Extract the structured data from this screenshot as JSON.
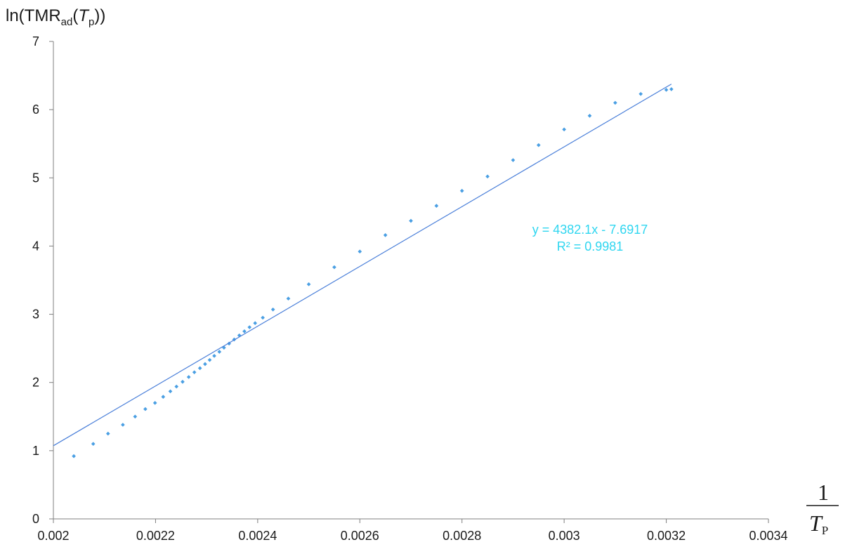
{
  "chart_data": {
    "type": "scatter",
    "ylabel": {
      "prefix": "ln(TMR",
      "sub": "ad",
      "paren": "(",
      "var": "T",
      "var_sub": "p",
      "suffix": "))"
    },
    "xlabel": {
      "numerator": "1",
      "var": "T",
      "var_sub": "P"
    },
    "xlim": [
      0.002,
      0.0034
    ],
    "ylim": [
      0,
      7
    ],
    "x_ticks": [
      0.002,
      0.0022,
      0.0024,
      0.0026,
      0.0028,
      0.003,
      0.0032,
      0.0034
    ],
    "x_tick_labels": [
      "0.002",
      "0.0022",
      "0.0024",
      "0.0026",
      "0.0028",
      "0.003",
      "0.0032",
      "0.0034"
    ],
    "y_ticks": [
      0,
      1,
      2,
      3,
      4,
      5,
      6,
      7
    ],
    "y_tick_labels": [
      "0",
      "1",
      "2",
      "3",
      "4",
      "5",
      "6",
      "7"
    ],
    "grid": false,
    "series": [
      {
        "marker_color": "#4a9fe3",
        "x": [
          0.00204,
          0.002078,
          0.002107,
          0.002136,
          0.00216,
          0.00218,
          0.002199,
          0.002215,
          0.002229,
          0.002241,
          0.002253,
          0.002265,
          0.002276,
          0.002287,
          0.002297,
          0.002306,
          0.002315,
          0.002325,
          0.002334,
          0.002344,
          0.002354,
          0.002364,
          0.002374,
          0.002384,
          0.002395,
          0.00241,
          0.00243,
          0.00246,
          0.0025,
          0.00255,
          0.0026,
          0.00265,
          0.0027,
          0.00275,
          0.0028,
          0.00285,
          0.0029,
          0.00295,
          0.003,
          0.00305,
          0.0031,
          0.00315,
          0.0032,
          0.00321
        ],
        "y": [
          0.92,
          1.1,
          1.25,
          1.38,
          1.5,
          1.61,
          1.7,
          1.79,
          1.87,
          1.94,
          2.01,
          2.08,
          2.15,
          2.21,
          2.27,
          2.33,
          2.39,
          2.45,
          2.51,
          2.57,
          2.63,
          2.69,
          2.75,
          2.81,
          2.87,
          2.95,
          3.07,
          3.23,
          3.44,
          3.69,
          3.92,
          4.16,
          4.37,
          4.59,
          4.81,
          5.02,
          5.26,
          5.48,
          5.71,
          5.91,
          6.1,
          6.23,
          6.29,
          6.3
        ]
      }
    ],
    "trendline": {
      "type": "linear",
      "slope": 4382.1,
      "intercept": -7.6917,
      "x_range": [
        0.002,
        0.00321
      ],
      "color": "#4a7fd9"
    },
    "annotation": {
      "equation": "y = 4382.1x - 7.6917",
      "r_squared": "R² = 0.9981",
      "color": "#2fd6f0"
    }
  }
}
